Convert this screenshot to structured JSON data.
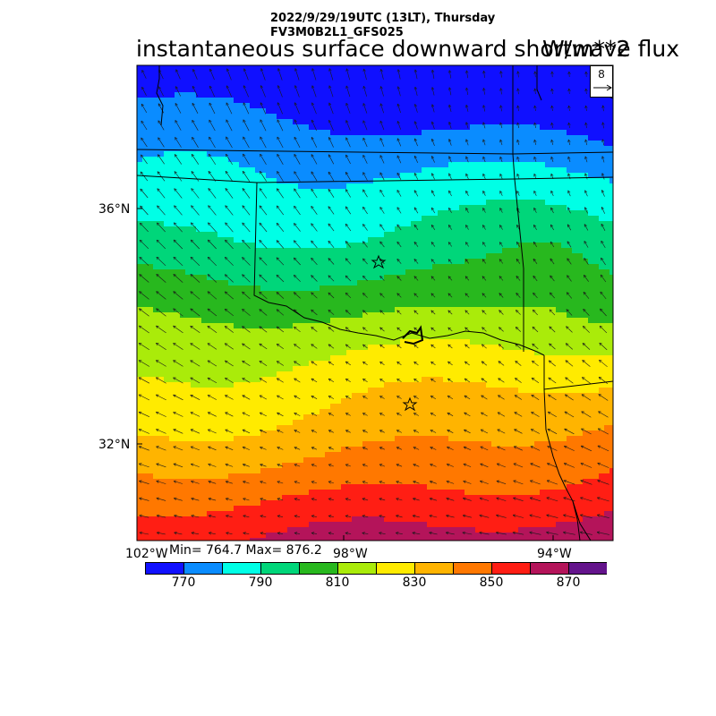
{
  "header": {
    "line1": "2022/9/29/19UTC (13LT), Thursday",
    "line2": "FV3M0B2L1_GFS025",
    "title": "instantaneous surface downward shortwave flux",
    "units": "W/m**2"
  },
  "axes": {
    "lat_labels": [
      "36°N",
      "32°N"
    ],
    "lon_labels": [
      "102°W",
      "98°W",
      "94°W"
    ]
  },
  "stats": {
    "text": "Min= 764.7 Max= 876.2",
    "min": 764.7,
    "max": 876.2
  },
  "vector_legend": {
    "speed": "8"
  },
  "colorbar": {
    "levels": [
      760,
      770,
      780,
      790,
      800,
      810,
      820,
      830,
      840,
      850,
      860,
      870,
      880
    ],
    "colors": [
      "#1010ff",
      "#0a8cff",
      "#00ffe6",
      "#00d67a",
      "#28b81e",
      "#aaeb0a",
      "#ffeb00",
      "#ffb400",
      "#ff7800",
      "#ff1e14",
      "#b4145a",
      "#64148c"
    ],
    "tick_labels": [
      "770",
      "790",
      "810",
      "830",
      "850",
      "870"
    ]
  },
  "markers": [
    {
      "name": "star-north"
    },
    {
      "name": "star-south"
    }
  ]
}
